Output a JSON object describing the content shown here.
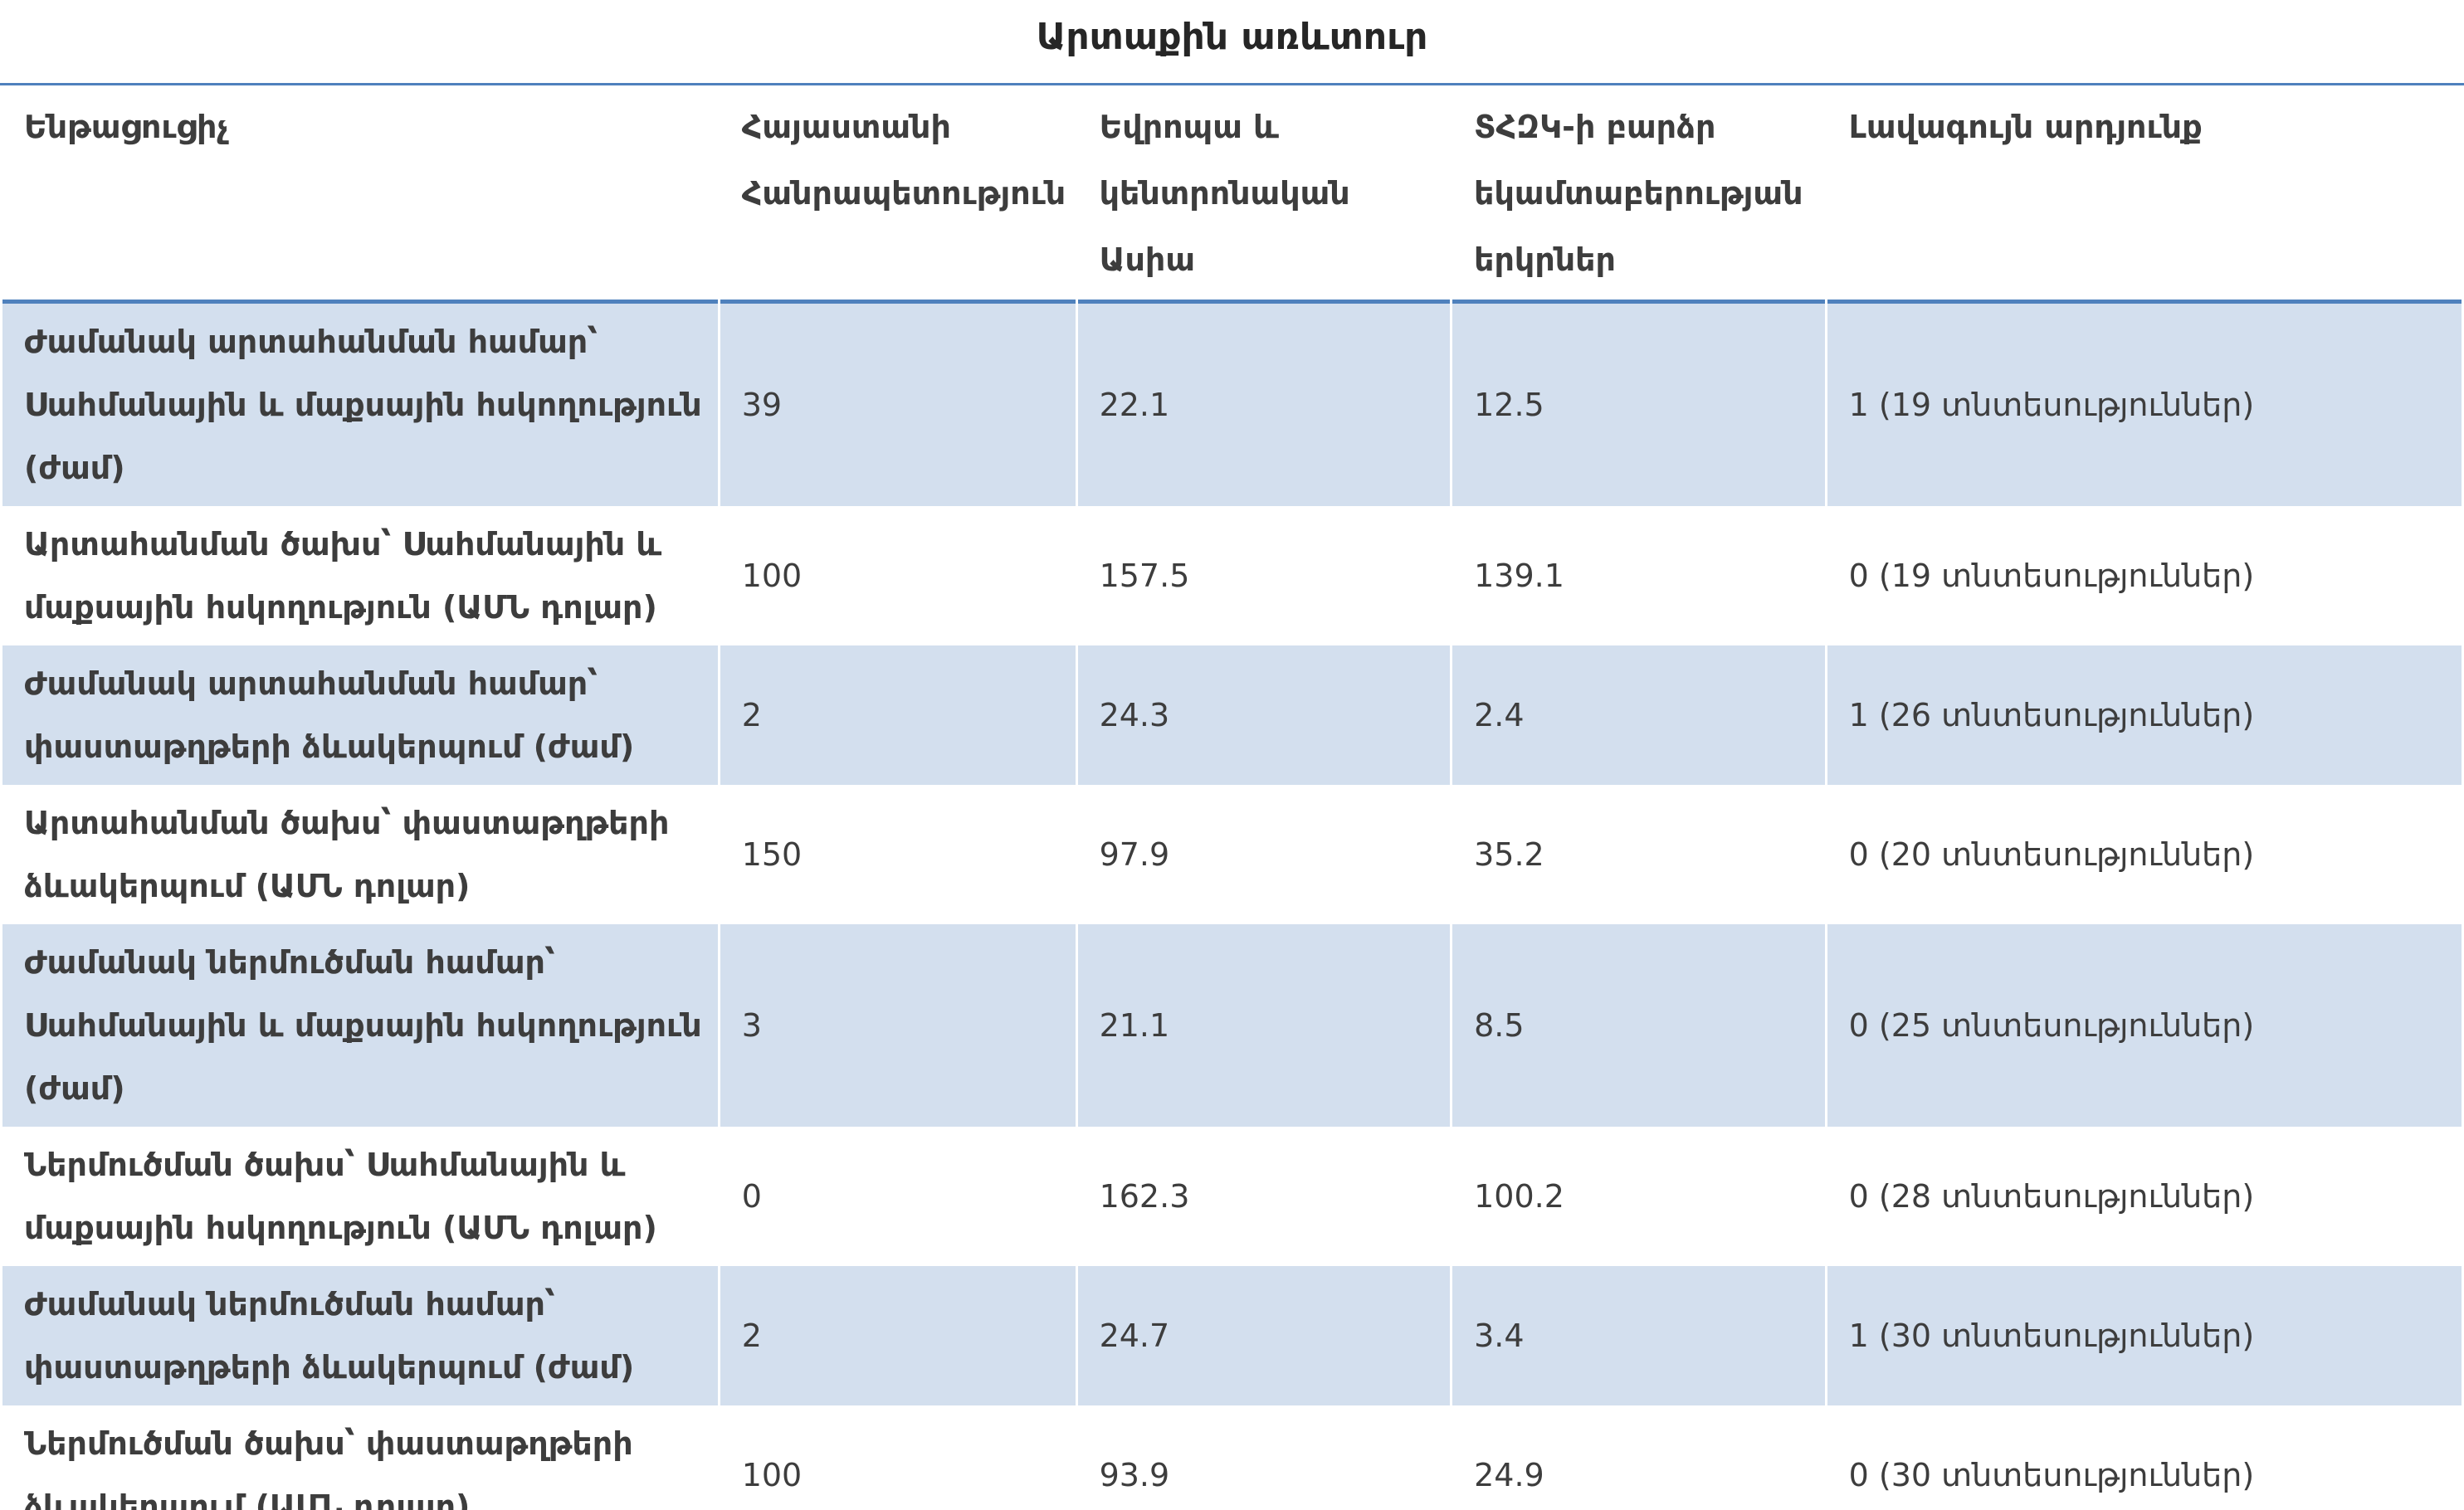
{
  "page_title": "Արտաքին առևտուր",
  "colors": {
    "band_fill": "#d3dfee",
    "rule_blue": "#4f81bd",
    "text": "#3d3d3d"
  },
  "table": {
    "columns": [
      "Ենթացուցիչ",
      "Հայաստանի Հանրապետություն",
      "Եվրոպա և կենտրոնական Ասիա",
      "ՏՀԶԿ-ի բարձր եկամտաբերության երկրներ",
      "Լավագույն արդյունք"
    ],
    "rows": [
      {
        "indicator": "Ժամանակ արտահանման համար՝ Սահմանային և մաքսային հսկողություն (ժամ)",
        "armenia": "39",
        "eca": "22.1",
        "oecd": "12.5",
        "best": "1 (19 տնտեսություններ)"
      },
      {
        "indicator": "Արտահանման ծախս՝ Սահմանային և մաքսային հսկողություն (ԱՄՆ դոլար)",
        "armenia": "100",
        "eca": "157.5",
        "oecd": "139.1",
        "best": "0 (19 տնտեսություններ)"
      },
      {
        "indicator": "Ժամանակ արտահանման համար՝ փաստաթղթերի ձևակերպում (ժամ)",
        "armenia": "2",
        "eca": "24.3",
        "oecd": "2.4",
        "best": "1 (26 տնտեսություններ)"
      },
      {
        "indicator": "Արտահանման ծախս՝ փաստաթղթերի ձևակերպում (ԱՄՆ դոլար)",
        "armenia": "150",
        "eca": "97.9",
        "oecd": "35.2",
        "best": "0 (20 տնտեսություններ)"
      },
      {
        "indicator": "Ժամանակ ներմուծման համար՝ Սահմանային և մաքսային հսկողություն (ժամ)",
        "armenia": "3",
        "eca": "21.1",
        "oecd": "8.5",
        "best": "0 (25 տնտեսություններ)"
      },
      {
        "indicator": "Ներմուծման ծախս՝ Սահմանային և մաքսային հսկողություն (ԱՄՆ դոլար)",
        "armenia": "0",
        "eca": "162.3",
        "oecd": "100.2",
        "best": "0 (28 տնտեսություններ)"
      },
      {
        "indicator": "Ժամանակ ներմուծման համար՝ փաստաթղթերի ձևակերպում (ժամ)",
        "armenia": "2",
        "eca": "24.7",
        "oecd": "3.4",
        "best": "1 (30 տնտեսություններ)"
      },
      {
        "indicator": "Ներմուծման ծախս՝ փաստաթղթերի ձևակերպում (ԱՄՆ դոլար)",
        "armenia": "100",
        "eca": "93.9",
        "oecd": "24.9",
        "best": "0 (30 տնտեսություններ)"
      }
    ]
  }
}
